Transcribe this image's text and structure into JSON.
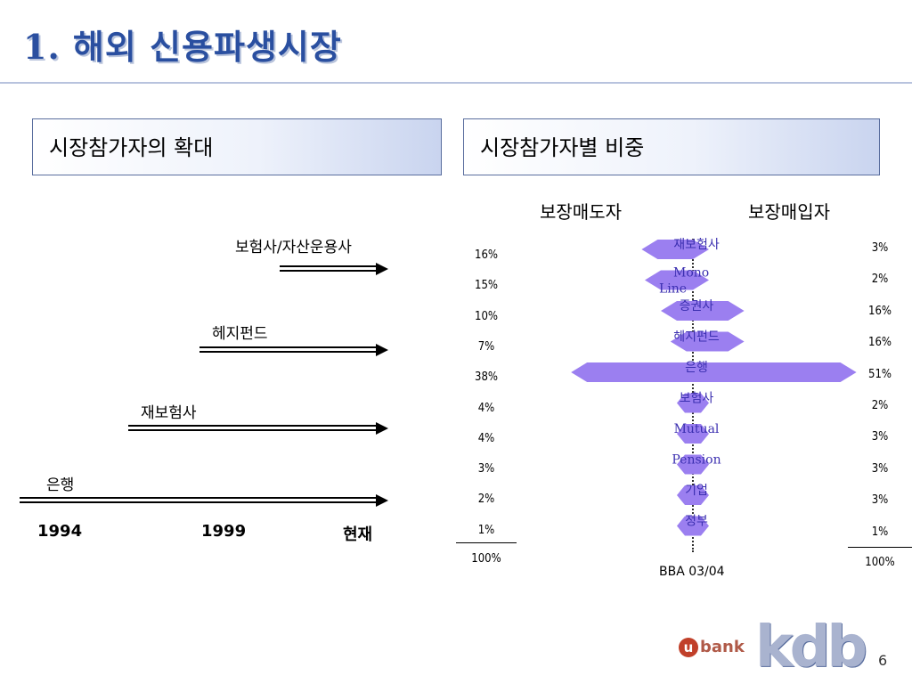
{
  "title": "1. 해외 신용파생시장",
  "panels": {
    "left": "시장참가자의 확대",
    "right": "시장참가자별 비중"
  },
  "timeline": {
    "labels": [
      "보험사/자산운용사",
      "헤지펀드",
      "재보험사",
      "은행"
    ],
    "years": [
      "1994",
      "1999",
      "현재"
    ]
  },
  "chart_data": {
    "type": "bar",
    "subtype": "butterfly",
    "column_headers": {
      "sellers": "보장매도자",
      "buyers": "보장매입자"
    },
    "categories": [
      "재보험사",
      "Mono Line",
      "증권사",
      "헤지펀드",
      "은행",
      "보험사",
      "Mutual",
      "Pension",
      "기업",
      "정부"
    ],
    "series": [
      {
        "name": "보장매도자",
        "values": [
          16,
          15,
          10,
          7,
          38,
          4,
          4,
          3,
          2,
          1
        ],
        "labels": [
          "16%",
          "15%",
          "10%",
          "7%",
          "38%",
          "4%",
          "4%",
          "3%",
          "2%",
          "1%"
        ]
      },
      {
        "name": "보장매입자",
        "values": [
          3,
          2,
          16,
          16,
          51,
          2,
          3,
          3,
          3,
          1
        ],
        "labels": [
          "3%",
          "2%",
          "16%",
          "16%",
          "51%",
          "2%",
          "3%",
          "3%",
          "3%",
          "1%"
        ]
      }
    ],
    "totals": {
      "sellers": "100%",
      "buyers": "100%"
    },
    "source": "BBA 03/04",
    "bar_color": "#9b7ff0"
  },
  "footer": {
    "page": "6",
    "logo_main": "kdb",
    "logo_sub": "bank",
    "logo_badge": "u"
  }
}
